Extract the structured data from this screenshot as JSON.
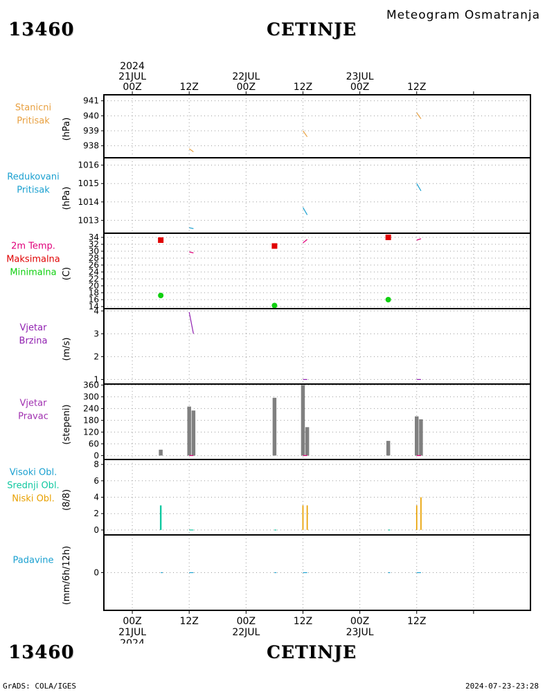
{
  "header": {
    "station_id": "13460",
    "station_name": "CETINJE",
    "chart_title": "Meteogram Osmatranja"
  },
  "footer": {
    "credit": "GrADS: COLA/IGES",
    "generated": "2024-07-23-23:28"
  },
  "colors": {
    "station_pressure": "#e8a040",
    "reduced_pressure": "#1aa0d0",
    "temp_label": "#e0007a",
    "temp_max": "#e00000",
    "temp_min": "#10d010",
    "wind_speed": "#9020b0",
    "wind_dir_bar": "#808080",
    "wind_dir_label": "#a030b0",
    "high_cloud": "#1aa0d0",
    "mid_cloud": "#10c8a0",
    "low_cloud": "#e8a000",
    "precip": "#1aa0d0"
  },
  "chart_data": {
    "type": "meteogram",
    "time_axis": {
      "unit": "hours since 2024-07-21 00Z",
      "range": [
        -6,
        84
      ],
      "top_ticks": [
        {
          "h": 0,
          "lines": [
            "2024",
            "21JUL",
            "00Z"
          ]
        },
        {
          "h": 12,
          "lines": [
            "12Z"
          ]
        },
        {
          "h": 24,
          "lines": [
            "22JUL",
            "00Z"
          ]
        },
        {
          "h": 36,
          "lines": [
            "12Z"
          ]
        },
        {
          "h": 48,
          "lines": [
            "23JUL",
            "00Z"
          ]
        },
        {
          "h": 60,
          "lines": [
            "12Z"
          ]
        }
      ],
      "bottom_ticks": [
        {
          "h": 0,
          "lines": [
            "00Z",
            "21JUL",
            "2024"
          ]
        },
        {
          "h": 12,
          "lines": [
            "12Z"
          ]
        },
        {
          "h": 24,
          "lines": [
            "00Z",
            "22JUL"
          ]
        },
        {
          "h": 36,
          "lines": [
            "12Z"
          ]
        },
        {
          "h": 48,
          "lines": [
            "00Z",
            "23JUL"
          ]
        },
        {
          "h": 60,
          "lines": [
            "12Z"
          ]
        }
      ]
    },
    "panels": [
      {
        "id": "station-pressure",
        "label_lines": [
          "Stanicni",
          "Pritisak"
        ],
        "label_color": "#e8a040",
        "unit": "(hPa)",
        "ylim": [
          937.2,
          941.4
        ],
        "yticks": [
          "941",
          "940",
          "939",
          "938"
        ],
        "ytick_values": [
          941,
          940,
          939,
          938
        ],
        "series": [
          {
            "kind": "segment",
            "color": "#e8a040",
            "points": [
              [
                12,
                937.8
              ],
              [
                12.9,
                937.6
              ]
            ]
          },
          {
            "kind": "segment",
            "color": "#e8a040",
            "points": [
              [
                36,
                939.0
              ],
              [
                36.9,
                938.6
              ]
            ]
          },
          {
            "kind": "segment",
            "color": "#e8a040",
            "points": [
              [
                60,
                940.2
              ],
              [
                60.9,
                939.8
              ]
            ]
          }
        ]
      },
      {
        "id": "reduced-pressure",
        "label_lines": [
          "Redukovani",
          "Pritisak"
        ],
        "label_color": "#1aa0d0",
        "unit": "(hPa)",
        "ylim": [
          1012.3,
          1016.4
        ],
        "yticks": [
          "1016",
          "1015",
          "1014",
          "1013"
        ],
        "ytick_values": [
          1016,
          1015,
          1014,
          1013
        ],
        "series": [
          {
            "kind": "segment",
            "color": "#1aa0d0",
            "points": [
              [
                12,
                1012.6
              ],
              [
                12.9,
                1012.55
              ]
            ]
          },
          {
            "kind": "segment",
            "color": "#1aa0d0",
            "points": [
              [
                36,
                1013.7
              ],
              [
                36.9,
                1013.3
              ]
            ]
          },
          {
            "kind": "segment",
            "color": "#1aa0d0",
            "points": [
              [
                60,
                1015.0
              ],
              [
                60.9,
                1014.6
              ]
            ]
          }
        ]
      },
      {
        "id": "temperature",
        "label_lines": [
          "2m Temp.",
          "Maksimalna",
          "Minimalna"
        ],
        "label_colors": [
          "#e0007a",
          "#e00000",
          "#10d010"
        ],
        "unit": "(C)",
        "ylim": [
          13.4,
          35.2
        ],
        "yticks": [
          "34",
          "32",
          "30",
          "28",
          "26",
          "24",
          "22",
          "20",
          "18",
          "16",
          "14"
        ],
        "ytick_values": [
          34,
          32,
          30,
          28,
          26,
          24,
          22,
          20,
          18,
          16,
          14
        ],
        "series": [
          {
            "kind": "segment",
            "color": "#e0007a",
            "points": [
              [
                12,
                29.8
              ],
              [
                12.9,
                29.5
              ]
            ]
          },
          {
            "kind": "segment",
            "color": "#e0007a",
            "points": [
              [
                36,
                32.4
              ],
              [
                36.9,
                33.4
              ]
            ]
          },
          {
            "kind": "segment",
            "color": "#e0007a",
            "points": [
              [
                60,
                33.2
              ],
              [
                60.9,
                33.6
              ]
            ]
          },
          {
            "kind": "square",
            "name": "Maksimalna",
            "color": "#e00000",
            "points": [
              [
                6,
                33.2
              ],
              [
                30,
                31.5
              ],
              [
                54,
                34.0
              ]
            ]
          },
          {
            "kind": "circle",
            "name": "Minimalna",
            "color": "#10d010",
            "points": [
              [
                6,
                17.2
              ],
              [
                30,
                14.3
              ],
              [
                54,
                16.0
              ]
            ]
          }
        ]
      },
      {
        "id": "wind-speed",
        "label_lines": [
          "Vjetar",
          "Brzina"
        ],
        "label_color": "#9020b0",
        "unit": "(m/s)",
        "ylim": [
          0.8,
          4.1
        ],
        "yticks": [
          "4",
          "3",
          "2",
          "1"
        ],
        "ytick_values": [
          4,
          3,
          2,
          1
        ],
        "series": [
          {
            "kind": "segment",
            "color": "#9020b0",
            "points": [
              [
                12,
                3.95
              ],
              [
                12.9,
                3.0
              ]
            ]
          },
          {
            "kind": "segment",
            "color": "#9020b0",
            "points": [
              [
                36,
                1.0
              ],
              [
                36.9,
                1.0
              ]
            ]
          },
          {
            "kind": "segment",
            "color": "#9020b0",
            "points": [
              [
                60,
                1.0
              ],
              [
                60.9,
                1.0
              ]
            ]
          }
        ]
      },
      {
        "id": "wind-direction",
        "label_lines": [
          "Vjetar",
          "Pravac"
        ],
        "label_color": "#a030b0",
        "unit": "(stepeni)",
        "ylim": [
          -20,
          365
        ],
        "yticks": [
          "360",
          "300",
          "240",
          "180",
          "120",
          "60",
          "0"
        ],
        "ytick_values": [
          360,
          300,
          240,
          180,
          120,
          60,
          0
        ],
        "series": [
          {
            "kind": "bars",
            "color": "#808080",
            "width": 0.8,
            "points": [
              [
                6,
                30
              ],
              [
                12,
                250
              ],
              [
                12.9,
                230
              ],
              [
                30,
                295
              ],
              [
                36,
                360
              ],
              [
                36.9,
                145
              ],
              [
                54,
                75
              ],
              [
                60,
                200
              ],
              [
                60.9,
                185
              ]
            ]
          },
          {
            "kind": "segment",
            "color": "#e0007a",
            "points": [
              [
                12,
                0
              ],
              [
                12.9,
                0
              ]
            ]
          },
          {
            "kind": "segment",
            "color": "#e0007a",
            "points": [
              [
                36,
                0
              ],
              [
                36.9,
                0
              ]
            ]
          },
          {
            "kind": "segment",
            "color": "#e0007a",
            "points": [
              [
                60,
                0
              ],
              [
                60.9,
                0
              ]
            ]
          }
        ]
      },
      {
        "id": "clouds",
        "label_lines": [
          "Visoki Obl.",
          "Srednji Obl.",
          "Niski Obl."
        ],
        "label_colors": [
          "#1aa0d0",
          "#10c8a0",
          "#e8a000"
        ],
        "unit": "(8/8)",
        "ylim": [
          -0.6,
          8.6
        ],
        "yticks": [
          "8",
          "6",
          "4",
          "2",
          "0"
        ],
        "ytick_values": [
          8,
          6,
          4,
          2,
          0
        ],
        "series": [
          {
            "kind": "bars",
            "name": "Srednji Obl.",
            "color": "#10c8a0",
            "width": 0.35,
            "points": [
              [
                6,
                3
              ]
            ]
          },
          {
            "kind": "bars",
            "name": "Niski Obl.",
            "color": "#e8a000",
            "width": 0.25,
            "points": [
              [
                36,
                3
              ],
              [
                36.9,
                3
              ],
              [
                60,
                3
              ],
              [
                60.9,
                4
              ]
            ]
          },
          {
            "kind": "segment",
            "color": "#10c8a0",
            "points": [
              [
                12,
                0
              ],
              [
                12.9,
                0
              ]
            ]
          },
          {
            "kind": "segment",
            "color": "#10c8a0",
            "points": [
              [
                30,
                0
              ],
              [
                30.4,
                0
              ]
            ]
          },
          {
            "kind": "segment",
            "color": "#10c8a0",
            "points": [
              [
                54,
                0
              ],
              [
                54.4,
                0
              ]
            ]
          }
        ]
      },
      {
        "id": "precipitation",
        "label_lines": [
          "Padavine"
        ],
        "label_color": "#1aa0d0",
        "unit": "(mm/6h/12h)",
        "ylim": [
          -1,
          1
        ],
        "yticks": [
          "0"
        ],
        "ytick_values": [
          0
        ],
        "series": [
          {
            "kind": "segment",
            "color": "#1aa0d0",
            "points": [
              [
                6,
                0
              ],
              [
                6.4,
                0
              ]
            ]
          },
          {
            "kind": "segment",
            "color": "#1aa0d0",
            "points": [
              [
                12,
                0
              ],
              [
                12.9,
                0
              ]
            ]
          },
          {
            "kind": "segment",
            "color": "#1aa0d0",
            "points": [
              [
                30,
                0
              ],
              [
                30.4,
                0
              ]
            ]
          },
          {
            "kind": "segment",
            "color": "#1aa0d0",
            "points": [
              [
                36,
                0
              ],
              [
                36.9,
                0
              ]
            ]
          },
          {
            "kind": "segment",
            "color": "#1aa0d0",
            "points": [
              [
                54,
                0
              ],
              [
                54.4,
                0
              ]
            ]
          },
          {
            "kind": "segment",
            "color": "#1aa0d0",
            "points": [
              [
                60,
                0
              ],
              [
                60.9,
                0
              ]
            ]
          }
        ]
      }
    ]
  }
}
